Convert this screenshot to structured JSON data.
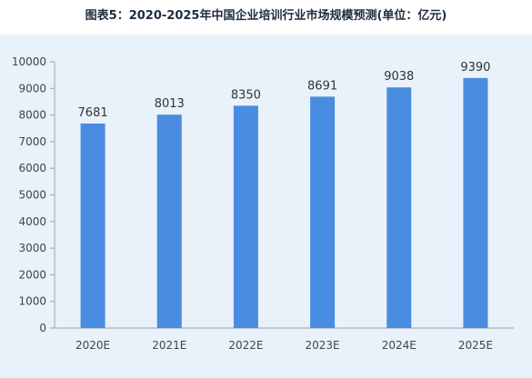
{
  "page": {
    "title": "图表5：2020-2025年中国企业培训行业市场规模预测(单位：亿元)"
  },
  "chart_data": {
    "type": "bar",
    "title": "图表5：2020-2025年中国企业培训行业市场规模预测(单位：亿元)",
    "xlabel": "",
    "ylabel": "",
    "categories": [
      "2020E",
      "2021E",
      "2022E",
      "2023E",
      "2024E",
      "2025E"
    ],
    "values": [
      7681,
      8013,
      8350,
      8691,
      9038,
      9390
    ],
    "ylim": [
      0,
      10000
    ],
    "yticks": [
      0,
      1000,
      2000,
      3000,
      4000,
      5000,
      6000,
      7000,
      8000,
      9000,
      10000
    ],
    "grid": false,
    "legend": "none",
    "colors": {
      "bar": "#4a8de0",
      "background": "#e9f1fb",
      "axis": "#9aa5b1"
    }
  }
}
